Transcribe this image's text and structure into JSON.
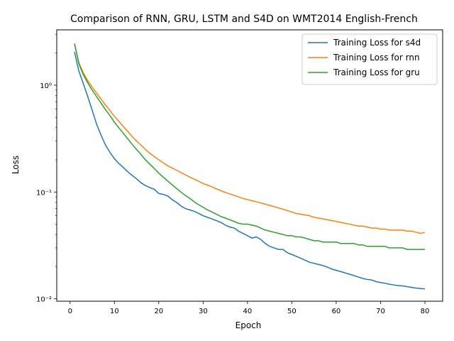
{
  "chart_data": {
    "type": "line",
    "title": "Comparison of RNN, GRU, LSTM and S4D on WMT2014 English-French",
    "xlabel": "Epoch",
    "ylabel": "Loss",
    "yscale": "log",
    "xlim": [
      -3,
      84
    ],
    "ylim": [
      0.0095,
      3.3
    ],
    "xticks": [
      0,
      10,
      20,
      30,
      40,
      50,
      60,
      70,
      80
    ],
    "xtick_labels": [
      "0",
      "10",
      "20",
      "30",
      "40",
      "50",
      "60",
      "70",
      "80"
    ],
    "yticks": [
      0.01,
      0.1,
      1
    ],
    "ytick_labels": [
      "10⁻²",
      "10⁻¹",
      "10⁰"
    ],
    "legend_position": "top-right",
    "grid": false,
    "x": [
      1,
      2,
      3,
      4,
      5,
      6,
      7,
      8,
      9,
      10,
      11,
      12,
      13,
      14,
      15,
      16,
      17,
      18,
      19,
      20,
      21,
      22,
      23,
      24,
      25,
      26,
      27,
      28,
      29,
      30,
      31,
      32,
      33,
      34,
      35,
      36,
      37,
      38,
      39,
      40,
      41,
      42,
      43,
      44,
      45,
      46,
      47,
      48,
      49,
      50,
      51,
      52,
      53,
      54,
      55,
      56,
      57,
      58,
      59,
      60,
      61,
      62,
      63,
      64,
      65,
      66,
      67,
      68,
      69,
      70,
      71,
      72,
      73,
      74,
      75,
      76,
      77,
      78,
      79,
      80
    ],
    "series": [
      {
        "name": "Training Loss for s4d",
        "color": "#1f77b4",
        "values": [
          2.05,
          1.35,
          1.03,
          0.78,
          0.58,
          0.43,
          0.34,
          0.275,
          0.235,
          0.205,
          0.185,
          0.17,
          0.155,
          0.143,
          0.133,
          0.122,
          0.115,
          0.11,
          0.106,
          0.097,
          0.095,
          0.092,
          0.085,
          0.08,
          0.074,
          0.07,
          0.068,
          0.066,
          0.063,
          0.06,
          0.058,
          0.056,
          0.054,
          0.052,
          0.049,
          0.047,
          0.046,
          0.043,
          0.041,
          0.039,
          0.037,
          0.038,
          0.036,
          0.033,
          0.031,
          0.03,
          0.029,
          0.029,
          0.027,
          0.026,
          0.025,
          0.024,
          0.023,
          0.022,
          0.0215,
          0.021,
          0.0205,
          0.0198,
          0.019,
          0.0185,
          0.018,
          0.0175,
          0.017,
          0.0165,
          0.016,
          0.0155,
          0.0152,
          0.015,
          0.0145,
          0.0142,
          0.014,
          0.0137,
          0.0135,
          0.0133,
          0.0132,
          0.013,
          0.0128,
          0.0126,
          0.0125,
          0.0124
        ]
      },
      {
        "name": "Training Loss for rnn",
        "color": "#ff7f0e",
        "values": [
          2.45,
          1.62,
          1.3,
          1.1,
          0.96,
          0.84,
          0.74,
          0.65,
          0.58,
          0.51,
          0.46,
          0.41,
          0.37,
          0.33,
          0.3,
          0.275,
          0.25,
          0.23,
          0.215,
          0.2,
          0.188,
          0.176,
          0.168,
          0.16,
          0.152,
          0.145,
          0.138,
          0.132,
          0.126,
          0.12,
          0.116,
          0.112,
          0.107,
          0.103,
          0.099,
          0.096,
          0.093,
          0.09,
          0.087,
          0.085,
          0.083,
          0.081,
          0.079,
          0.077,
          0.075,
          0.073,
          0.071,
          0.069,
          0.067,
          0.065,
          0.063,
          0.062,
          0.061,
          0.06,
          0.058,
          0.057,
          0.056,
          0.055,
          0.054,
          0.053,
          0.052,
          0.051,
          0.05,
          0.049,
          0.048,
          0.048,
          0.047,
          0.046,
          0.046,
          0.045,
          0.045,
          0.044,
          0.044,
          0.044,
          0.044,
          0.043,
          0.043,
          0.042,
          0.041,
          0.042
        ]
      },
      {
        "name": "Training Loss for gru",
        "color": "#2ca02c",
        "values": [
          2.45,
          1.58,
          1.25,
          1.05,
          0.9,
          0.78,
          0.68,
          0.59,
          0.52,
          0.45,
          0.4,
          0.355,
          0.315,
          0.28,
          0.25,
          0.225,
          0.2,
          0.182,
          0.166,
          0.15,
          0.138,
          0.127,
          0.117,
          0.108,
          0.1,
          0.093,
          0.087,
          0.081,
          0.076,
          0.072,
          0.068,
          0.065,
          0.062,
          0.059,
          0.057,
          0.055,
          0.053,
          0.051,
          0.05,
          0.05,
          0.049,
          0.048,
          0.046,
          0.044,
          0.043,
          0.042,
          0.041,
          0.04,
          0.039,
          0.039,
          0.038,
          0.038,
          0.037,
          0.036,
          0.035,
          0.035,
          0.034,
          0.034,
          0.034,
          0.034,
          0.033,
          0.033,
          0.033,
          0.033,
          0.032,
          0.032,
          0.031,
          0.031,
          0.031,
          0.031,
          0.031,
          0.03,
          0.03,
          0.03,
          0.03,
          0.029,
          0.029,
          0.029,
          0.029,
          0.029
        ]
      }
    ]
  }
}
